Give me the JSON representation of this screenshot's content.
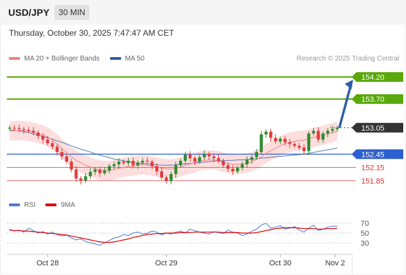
{
  "header": {
    "symbol": "USD/JPY",
    "timeframe": "30 MIN",
    "datetime": "Thursday, October 30, 2025 7:47:47 AM CET"
  },
  "legend": {
    "main": [
      {
        "label": "MA 20 + Bollinger Bands",
        "color": "#f08080"
      },
      {
        "label": "MA 50",
        "color": "#2e5aa8"
      }
    ],
    "rsi": [
      {
        "label": "RSI",
        "color": "#4a78d0"
      },
      {
        "label": "9MA",
        "color": "#dd0000"
      }
    ]
  },
  "credit": "Research © 2025 Trading Central",
  "colors": {
    "up": "#2e8b2e",
    "down": "#e23a3a",
    "resistance": "#5aa80a",
    "support_blue": "#2c5fd0",
    "support_red": "#e06868",
    "current": "#333333",
    "arrow": "#2e5fa8",
    "band": "#fdd8d8"
  },
  "chart_data": {
    "type": "candlestick",
    "ylim": [
      151.55,
      154.45
    ],
    "levels": [
      {
        "label": "154.20",
        "value": 154.2,
        "kind": "resistance"
      },
      {
        "label": "153.70",
        "value": 153.7,
        "kind": "resistance"
      },
      {
        "label": "153.05",
        "value": 153.05,
        "kind": "current"
      },
      {
        "label": "152.45",
        "value": 152.45,
        "kind": "pivot"
      },
      {
        "label": "152.15",
        "value": 152.15,
        "kind": "support"
      },
      {
        "label": "151.85",
        "value": 151.85,
        "kind": "support"
      }
    ],
    "arrow": {
      "from_value": 153.05,
      "to_value": 154.2
    },
    "x_ticks": [
      "Oct 28",
      "Oct 29",
      "Oct 30",
      "Nov 2"
    ],
    "x_tick_bars": [
      8,
      33,
      57,
      70
    ],
    "closes": [
      153.05,
      153.04,
      153.02,
      153.0,
      152.98,
      152.94,
      152.86,
      152.78,
      152.7,
      152.62,
      152.5,
      152.4,
      152.28,
      152.1,
      151.9,
      151.85,
      151.95,
      152.05,
      152.1,
      152.02,
      152.08,
      152.18,
      152.22,
      152.28,
      152.25,
      152.3,
      152.2,
      152.26,
      152.3,
      152.28,
      152.18,
      152.06,
      151.92,
      151.84,
      152.0,
      152.2,
      152.3,
      152.44,
      152.36,
      152.28,
      152.38,
      152.46,
      152.4,
      152.36,
      152.3,
      152.2,
      152.12,
      152.06,
      152.14,
      152.22,
      152.32,
      152.38,
      152.5,
      152.9,
      152.96,
      152.82,
      152.74,
      152.8,
      152.72,
      152.68,
      152.64,
      152.6,
      152.52,
      152.92,
      152.98,
      152.78,
      152.92,
      152.98,
      153.02,
      153.05
    ],
    "ma20": [
      152.98,
      152.98,
      152.99,
      152.98,
      152.97,
      152.95,
      152.92,
      152.89,
      152.84,
      152.77,
      152.68,
      152.58,
      152.48,
      152.39,
      152.31,
      152.25,
      152.2,
      152.16,
      152.12,
      152.09,
      152.08,
      152.08,
      152.1,
      152.13,
      152.15,
      152.17,
      152.18,
      152.2,
      152.21,
      152.2,
      152.18,
      152.16,
      152.13,
      152.12,
      152.11,
      152.13,
      152.16,
      152.2,
      152.23,
      152.26,
      152.29,
      152.31,
      152.32,
      152.32,
      152.3,
      152.27,
      152.24,
      152.22,
      152.22,
      152.23,
      152.25,
      152.28,
      152.33,
      152.39,
      152.47,
      152.53,
      152.59,
      152.64,
      152.69,
      152.72,
      152.74,
      152.76,
      152.77,
      152.8,
      152.83,
      152.85,
      152.88,
      152.91,
      152.94,
      152.97
    ],
    "ma50": [
      153.0,
      152.99,
      152.98,
      152.96,
      152.94,
      152.91,
      152.88,
      152.85,
      152.82,
      152.79,
      152.75,
      152.72,
      152.68,
      152.64,
      152.6,
      152.56,
      152.53,
      152.5,
      152.46,
      152.43,
      152.4,
      152.37,
      152.34,
      152.32,
      152.3,
      152.28,
      152.26,
      152.25,
      152.24,
      152.23,
      152.22,
      152.21,
      152.2,
      152.2,
      152.2,
      152.21,
      152.22,
      152.23,
      152.24,
      152.25,
      152.26,
      152.27,
      152.28,
      152.29,
      152.3,
      152.3,
      152.31,
      152.31,
      152.32,
      152.32,
      152.33,
      152.34,
      152.35,
      152.36,
      152.37,
      152.38,
      152.39,
      152.4,
      152.41,
      152.42,
      152.43,
      152.44,
      152.45,
      152.47,
      152.49,
      152.51,
      152.53,
      152.55,
      152.57,
      152.59
    ],
    "rsi": {
      "ticks": [
        70,
        50,
        30
      ],
      "ylim": [
        15,
        85
      ],
      "rsi_values": [
        58,
        54,
        56,
        52,
        60,
        55,
        50,
        53,
        48,
        52,
        47,
        44,
        46,
        40,
        36,
        38,
        33,
        30,
        28,
        25,
        30,
        35,
        40,
        42,
        47,
        45,
        50,
        52,
        48,
        50,
        54,
        52,
        46,
        50,
        48,
        52,
        54,
        50,
        58,
        55,
        52,
        50,
        48,
        53,
        51,
        49,
        56,
        52,
        50,
        45,
        48,
        54,
        58,
        66,
        70,
        60,
        62,
        65,
        58,
        60,
        63,
        56,
        52,
        60,
        66,
        55,
        58,
        62,
        64,
        64
      ],
      "ma9_values": [
        56,
        55,
        55,
        54,
        54,
        53,
        52,
        51,
        50,
        49,
        48,
        47,
        46,
        44,
        42,
        40,
        38,
        36,
        34,
        32,
        31,
        31,
        32,
        34,
        36,
        38,
        41,
        43,
        45,
        47,
        48,
        49,
        49,
        50,
        50,
        50,
        51,
        51,
        51,
        52,
        52,
        52,
        52,
        52,
        52,
        51,
        51,
        51,
        51,
        50,
        50,
        50,
        51,
        53,
        55,
        57,
        59,
        60,
        61,
        61,
        61,
        60,
        59,
        59,
        59,
        58,
        58,
        59,
        59,
        60
      ]
    }
  }
}
